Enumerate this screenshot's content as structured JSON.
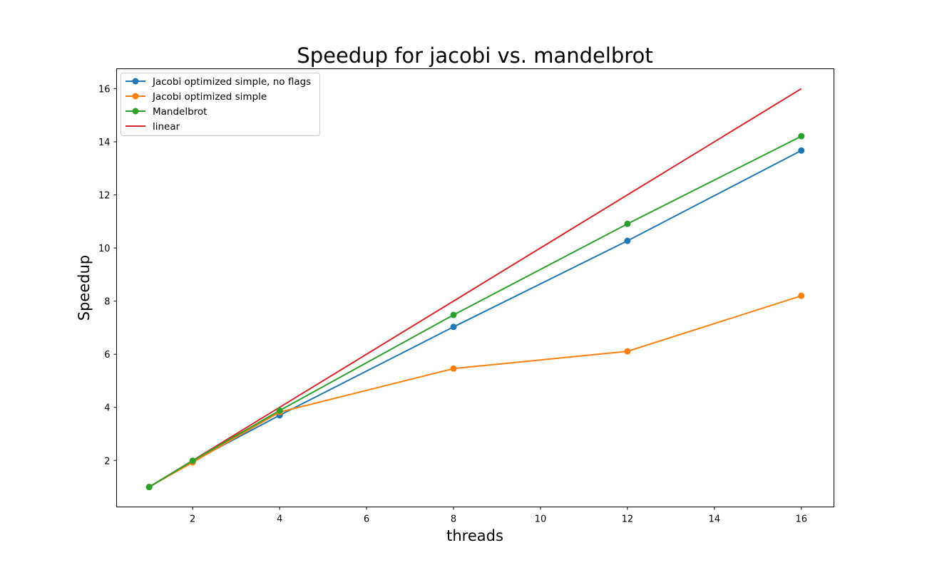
{
  "chart_data": {
    "type": "line",
    "title": "Speedup for jacobi vs. mandelbrot",
    "xlabel": "threads",
    "ylabel": "Speedup",
    "xlim": [
      0.25,
      16.75
    ],
    "ylim": [
      0.25,
      16.75
    ],
    "xticks": [
      2,
      4,
      6,
      8,
      10,
      12,
      14,
      16
    ],
    "yticks": [
      2,
      4,
      6,
      8,
      10,
      12,
      14,
      16
    ],
    "grid": false,
    "legend_position": "top-left",
    "series": [
      {
        "name": "Jacobi optimized simple, no flags",
        "color": "#1f77b4",
        "marker": "circle",
        "x": [
          1,
          2,
          4,
          8,
          12,
          16
        ],
        "y": [
          1.0,
          1.97,
          3.7,
          7.03,
          10.27,
          13.67
        ]
      },
      {
        "name": "Jacobi optimized simple",
        "color": "#ff7f0e",
        "marker": "circle",
        "x": [
          1,
          2,
          4,
          8,
          12,
          16
        ],
        "y": [
          1.0,
          1.93,
          3.82,
          5.46,
          6.11,
          8.2
        ]
      },
      {
        "name": "Mandelbrot",
        "color": "#2ca02c",
        "marker": "circle",
        "x": [
          1,
          2,
          4,
          8,
          12,
          16
        ],
        "y": [
          1.0,
          1.99,
          3.88,
          7.48,
          10.91,
          14.21
        ]
      },
      {
        "name": "linear",
        "color": "#d62728",
        "marker": "none",
        "x": [
          1,
          2,
          4,
          8,
          12,
          16
        ],
        "y": [
          1,
          2,
          4,
          8,
          12,
          16
        ]
      }
    ]
  }
}
